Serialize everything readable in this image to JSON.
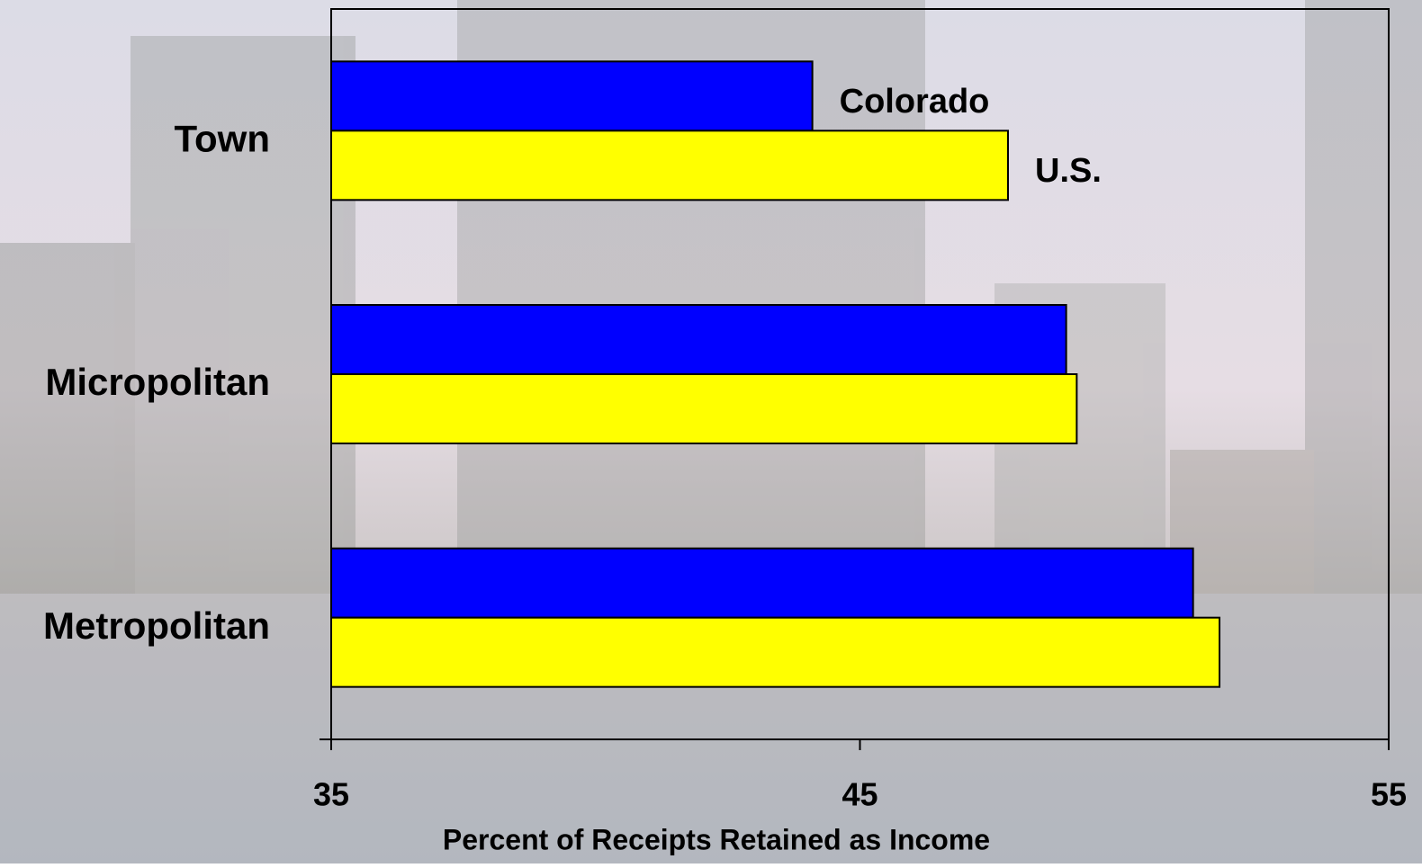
{
  "chart_data": {
    "type": "hbar",
    "categories": [
      "Town",
      "Micropolitan",
      "Metropolitan"
    ],
    "series": [
      {
        "name": "Colorado",
        "color": "#0000ff",
        "values": [
          44.1,
          48.9,
          51.3
        ]
      },
      {
        "name": "U.S.",
        "color": "#ffff00",
        "values": [
          47.8,
          49.1,
          51.8
        ]
      }
    ],
    "xlim": [
      35,
      55
    ],
    "xticks": [
      35,
      45,
      55
    ],
    "xlabel": "Percent of Receipts Retained as Income"
  }
}
